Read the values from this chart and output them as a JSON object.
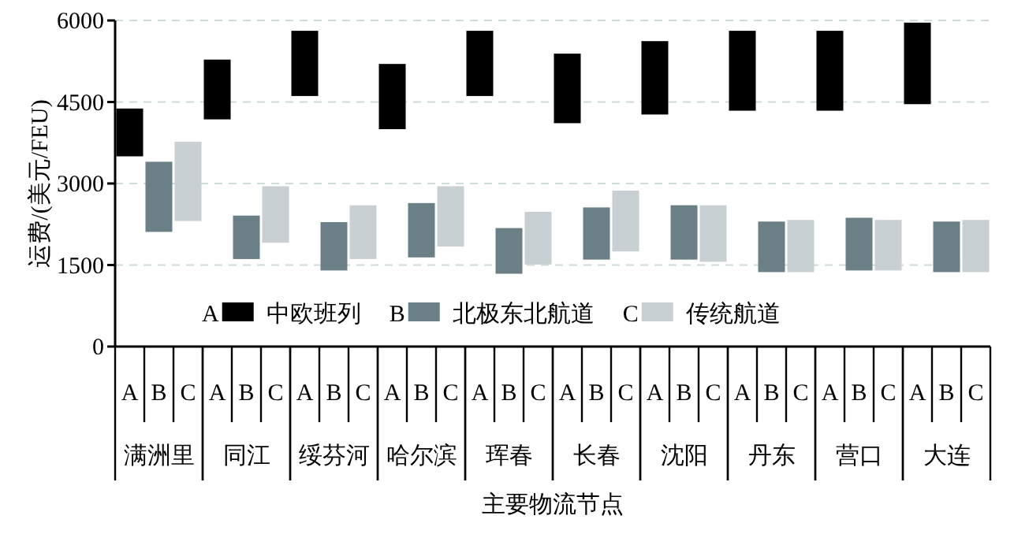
{
  "chart_data": {
    "type": "bar",
    "annotations": [
      "A",
      "B",
      "C"
    ],
    "xlabel": "主要物流节点",
    "ylabel": "运费/(美元/FEU)",
    "categories": [
      "满洲里",
      "同江",
      "绥芬河",
      "哈尔滨",
      "珲春",
      "长春",
      "沈阳",
      "丹东",
      "营口",
      "大连"
    ],
    "series": [
      {
        "name": "中欧班列",
        "color": "#000000",
        "base": [
          3500,
          4180,
          4610,
          4000,
          4610,
          4110,
          4270,
          4340,
          4340,
          4460
        ],
        "values": [
          880,
          1100,
          1200,
          1200,
          1200,
          1280,
          1350,
          1470,
          1470,
          1500
        ]
      },
      {
        "name": "北极东北航道",
        "color": "#6b7f86",
        "base": [
          2110,
          1610,
          1400,
          1640,
          1340,
          1600,
          1600,
          1370,
          1400,
          1370
        ],
        "values": [
          1290,
          800,
          890,
          1000,
          840,
          960,
          1000,
          930,
          970,
          930
        ]
      },
      {
        "name": "传统航道",
        "color": "#c8d0d3",
        "base": [
          2310,
          1910,
          1610,
          1840,
          1510,
          1750,
          1560,
          1370,
          1400,
          1370
        ],
        "values": [
          1460,
          1040,
          990,
          1110,
          970,
          1120,
          1040,
          960,
          930,
          960
        ]
      }
    ],
    "ylim": [
      0,
      6000
    ],
    "yticks": [
      0,
      1500,
      3000,
      4500,
      6000
    ],
    "grid": "y",
    "legend": "bottom"
  }
}
